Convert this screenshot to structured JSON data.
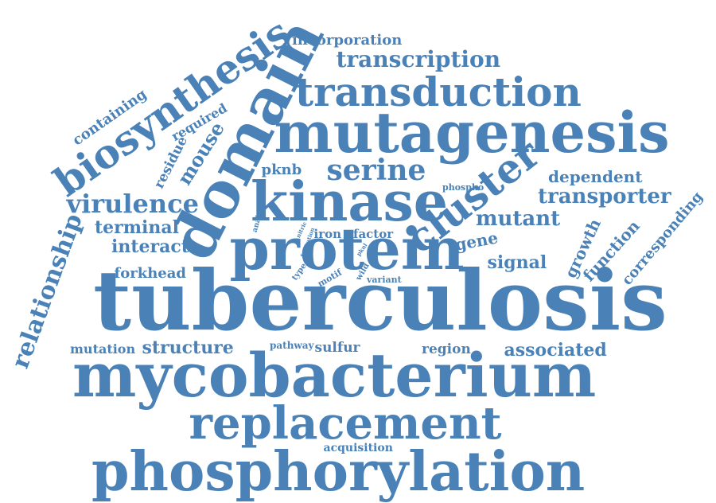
{
  "colors": {
    "word": "#4a82b8",
    "background": "#ffffff"
  },
  "words": [
    {
      "id": "tuberculosis",
      "text": "tuberculosis"
    },
    {
      "id": "mycobacterium",
      "text": "mycobacterium"
    },
    {
      "id": "phosphorylation",
      "text": "phosphorylation"
    },
    {
      "id": "mutagenesis",
      "text": "mutagenesis"
    },
    {
      "id": "protein",
      "text": "protein"
    },
    {
      "id": "domain",
      "text": "domain"
    },
    {
      "id": "kinase",
      "text": "kinase"
    },
    {
      "id": "replacement",
      "text": "replacement"
    },
    {
      "id": "transduction",
      "text": "transduction"
    },
    {
      "id": "biosynthesis",
      "text": "biosynthesis"
    },
    {
      "id": "cluster",
      "text": "cluster"
    },
    {
      "id": "serine",
      "text": "serine"
    },
    {
      "id": "transcription",
      "text": "transcription"
    },
    {
      "id": "virulence",
      "text": "virulence"
    },
    {
      "id": "relationship",
      "text": "relationship"
    },
    {
      "id": "transporter",
      "text": "transporter"
    },
    {
      "id": "mutant",
      "text": "mutant"
    },
    {
      "id": "structure",
      "text": "structure"
    },
    {
      "id": "associated",
      "text": "associated"
    },
    {
      "id": "incorporation",
      "text": "incorporation"
    },
    {
      "id": "containing",
      "text": "containing"
    },
    {
      "id": "required",
      "text": "required"
    },
    {
      "id": "residue",
      "text": "residue"
    },
    {
      "id": "mouse",
      "text": "mouse"
    },
    {
      "id": "pknb",
      "text": "pknb"
    },
    {
      "id": "dependent",
      "text": "dependent"
    },
    {
      "id": "corresponding",
      "text": "corresponding"
    },
    {
      "id": "terminal",
      "text": "terminal"
    },
    {
      "id": "interact",
      "text": "interact"
    },
    {
      "id": "iron",
      "text": "iron"
    },
    {
      "id": "factor",
      "text": "factor"
    },
    {
      "id": "gene",
      "text": "gene"
    },
    {
      "id": "growth",
      "text": "growth"
    },
    {
      "id": "function",
      "text": "function"
    },
    {
      "id": "signal",
      "text": "signal"
    },
    {
      "id": "forkhead",
      "text": "forkhead"
    },
    {
      "id": "mutation",
      "text": "mutation"
    },
    {
      "id": "sulfur",
      "text": "sulfur"
    },
    {
      "id": "region",
      "text": "region"
    },
    {
      "id": "pathway",
      "text": "pathway"
    },
    {
      "id": "acquisition",
      "text": "acquisition"
    },
    {
      "id": "phospho",
      "text": "phospho"
    },
    {
      "id": "analysis",
      "text": "analysis"
    },
    {
      "id": "nitric",
      "text": "nitric"
    },
    {
      "id": "formation",
      "text": "formation"
    },
    {
      "id": "pknl",
      "text": "pknl"
    },
    {
      "id": "type",
      "text": "type"
    },
    {
      "id": "motif",
      "text": "motif"
    },
    {
      "id": "wild",
      "text": "wild"
    },
    {
      "id": "variant",
      "text": "variant"
    }
  ]
}
